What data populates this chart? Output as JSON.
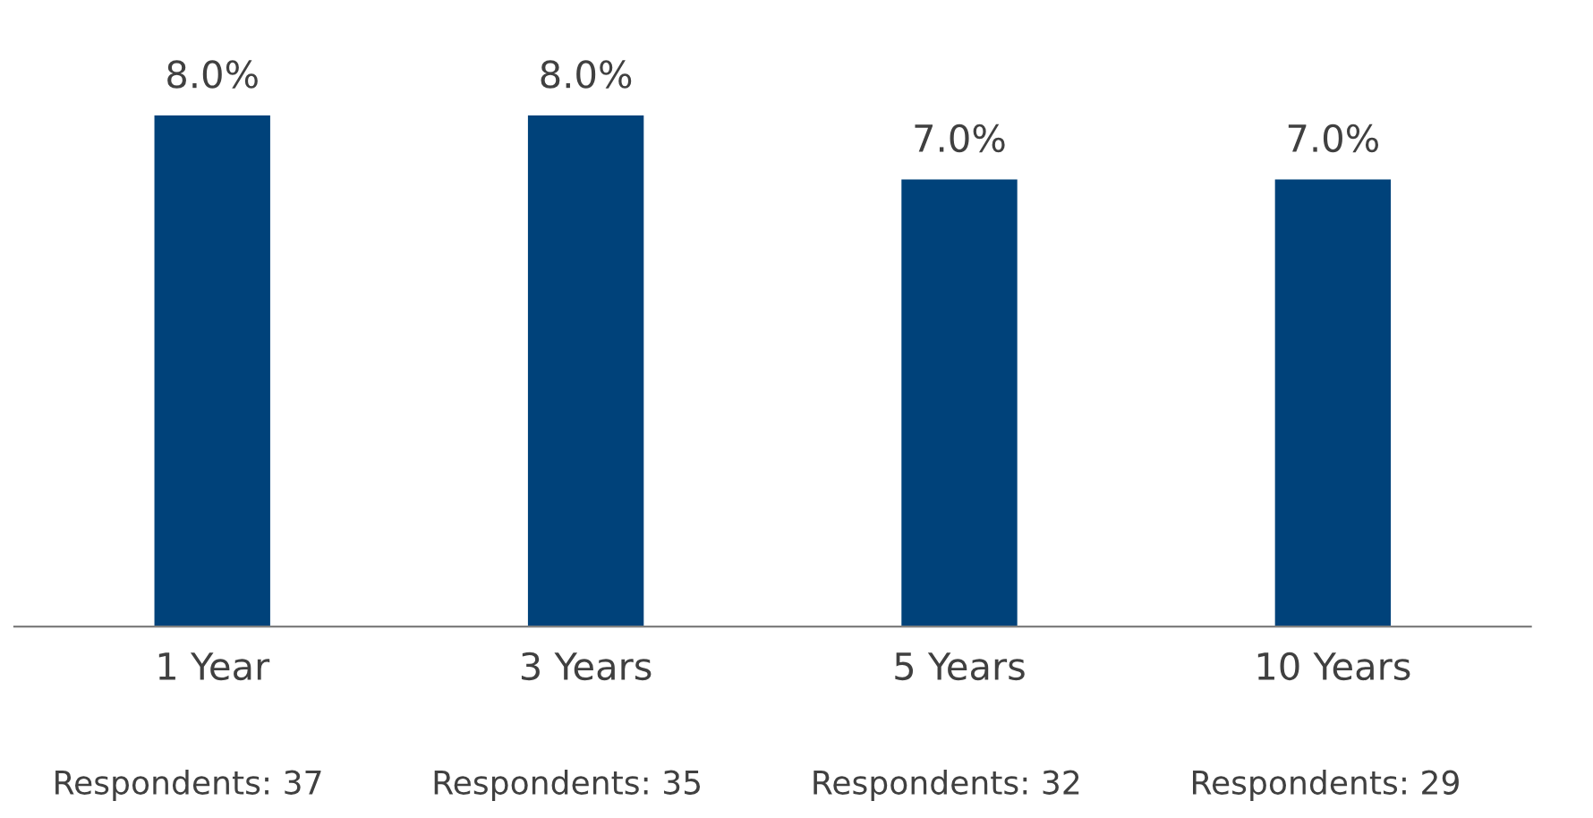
{
  "chart_data": {
    "type": "bar",
    "categories": [
      "1 Year",
      "3 Years",
      "5 Years",
      "10 Years"
    ],
    "values": [
      8.0,
      8.0,
      7.0,
      7.0
    ],
    "value_labels": [
      "8.0%",
      "8.0%",
      "7.0%",
      "7.0%"
    ],
    "color": "#00427a",
    "tick_labels": "x",
    "grid": false,
    "annotations": [
      "Respondents: 37",
      "Respondents: 35",
      "Respondents: 32",
      "Respondents: 29"
    ]
  }
}
